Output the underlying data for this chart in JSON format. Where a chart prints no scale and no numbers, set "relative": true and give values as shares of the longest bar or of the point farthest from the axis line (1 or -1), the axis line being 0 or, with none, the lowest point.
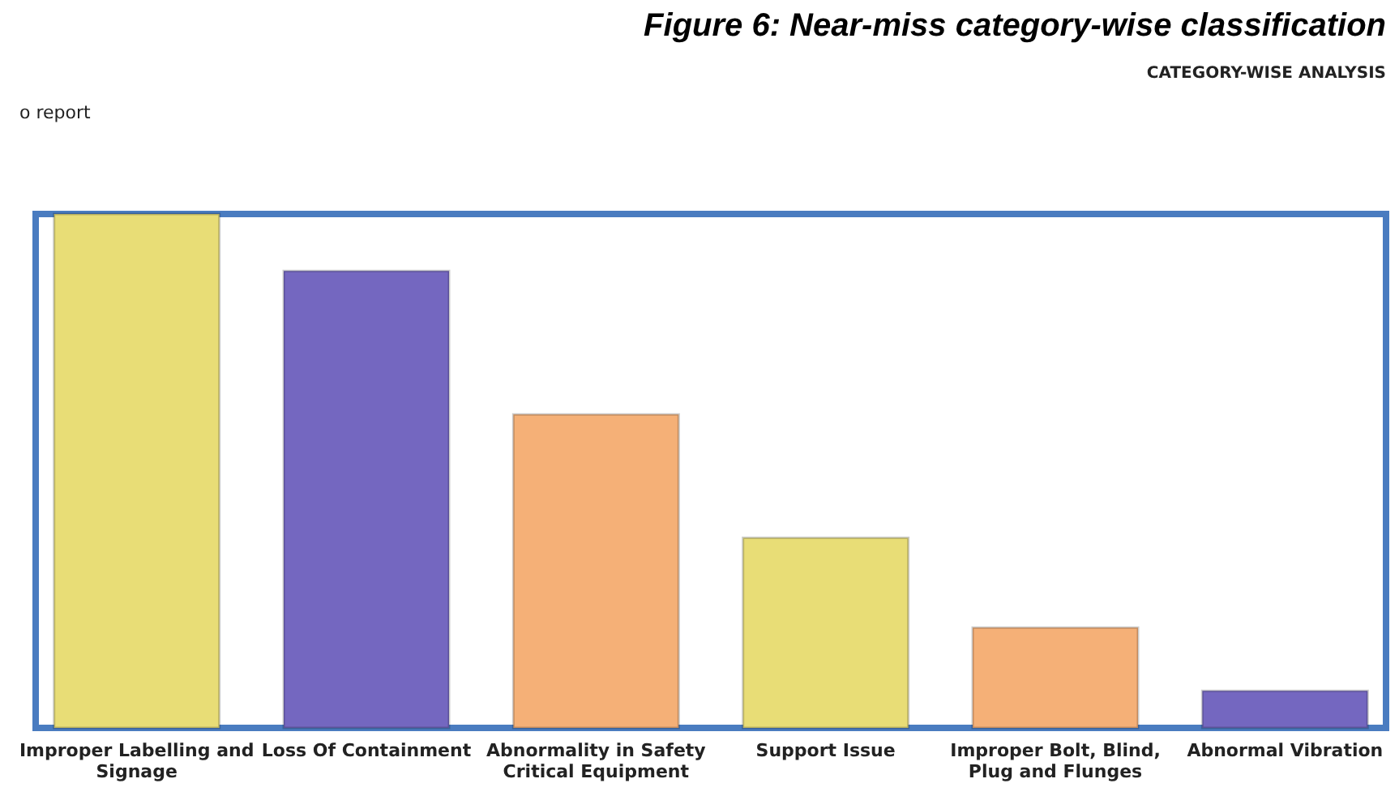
{
  "chart_data": {
    "type": "bar",
    "title": "Figure 6: Near-miss category-wise classification",
    "subtitle": "CATEGORY-WISE ANALYSIS",
    "annotations": [
      "o report"
    ],
    "categories": [
      "Improper Labelling and Signage",
      "Loss Of Containment",
      "Abnormality in Safety Critical Equipment",
      "Support Issue",
      "Improper Bolt, Blind, Plug and Flunges",
      "Abnormal Vibration"
    ],
    "values": [
      1,
      0.889,
      0.61,
      0.37,
      0.195,
      0.072
    ],
    "colors": [
      "#e8dd76",
      "#7467c0",
      "#f5b077",
      "#e8dd76",
      "#f5b077",
      "#7467c0"
    ],
    "relative": true,
    "grid": false
  }
}
